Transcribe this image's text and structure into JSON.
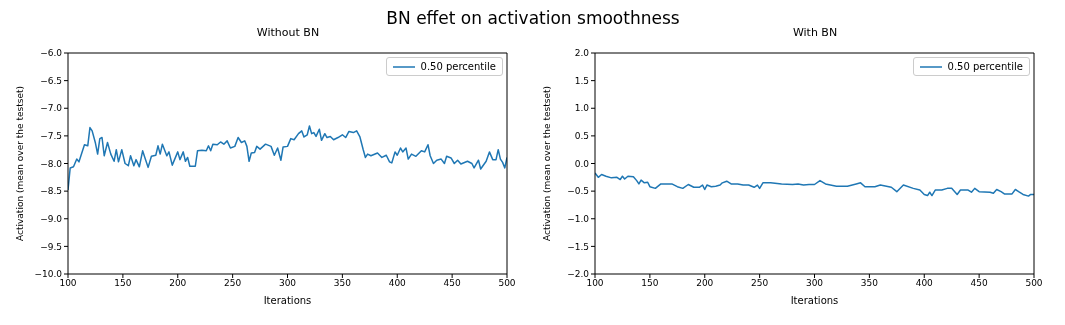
{
  "chart_data": [
    {
      "type": "line",
      "title": "Without BN",
      "annotations": [
        "BN effet on activation smoothness"
      ],
      "xlabel": "Iterations",
      "ylabel": "Activation (mean over the testset)",
      "xlim": [
        100,
        500
      ],
      "xticks": [
        100,
        150,
        200,
        250,
        300,
        350,
        400,
        450,
        500
      ],
      "ylim": [
        -10,
        -6
      ],
      "yticks": [
        {
          "value": -10,
          "label": "−10.0"
        },
        {
          "value": -9.5,
          "label": "−9.5"
        },
        {
          "value": -9,
          "label": "−9.0"
        },
        {
          "value": -8.5,
          "label": "−8.5"
        },
        {
          "value": -8,
          "label": "−8.0"
        },
        {
          "value": -7.5,
          "label": "−7.5"
        },
        {
          "value": -7,
          "label": "−7.0"
        },
        {
          "value": -6.5,
          "label": "−6.5"
        },
        {
          "value": -6,
          "label": "−6.0"
        }
      ],
      "grid": false,
      "legend": "top right",
      "marker": "none",
      "line_style": "solid",
      "series": [
        {
          "name": "0.50 percentile",
          "color": "#1f77b4",
          "x": [
            100,
            102,
            105,
            108,
            110,
            115,
            118,
            120,
            122,
            125,
            127,
            129,
            131,
            133,
            136,
            139,
            142,
            144,
            146,
            149,
            152,
            155,
            157,
            160,
            162,
            165,
            168,
            170,
            173,
            176,
            180,
            182,
            184,
            186,
            190,
            192,
            195,
            200,
            202,
            205,
            207,
            209,
            211,
            216,
            218,
            222,
            226,
            228,
            230,
            232,
            236,
            239,
            242,
            245,
            248,
            252,
            255,
            258,
            261,
            263,
            265,
            267,
            270,
            272,
            275,
            280,
            285,
            288,
            291,
            294,
            296,
            300,
            303,
            306,
            310,
            313,
            315,
            318,
            320,
            322,
            324,
            326,
            329,
            331,
            334,
            336,
            339,
            342,
            346,
            350,
            353,
            356,
            360,
            363,
            366,
            369,
            371,
            373,
            376,
            382,
            386,
            390,
            393,
            395,
            398,
            400,
            403,
            405,
            408,
            410,
            413,
            417,
            422,
            425,
            428,
            430,
            433,
            436,
            440,
            443,
            445,
            449,
            452,
            455,
            458,
            464,
            468,
            470,
            474,
            476,
            481,
            484,
            487,
            490,
            492,
            494,
            496,
            498,
            500
          ],
          "values": [
            -8.48,
            -8.08,
            -8.06,
            -7.92,
            -7.97,
            -7.66,
            -7.68,
            -7.35,
            -7.41,
            -7.63,
            -7.83,
            -7.55,
            -7.53,
            -7.86,
            -7.62,
            -7.83,
            -7.96,
            -7.75,
            -7.97,
            -7.75,
            -8.0,
            -8.04,
            -7.86,
            -8.04,
            -7.93,
            -8.06,
            -7.77,
            -7.89,
            -8.07,
            -7.87,
            -7.85,
            -7.68,
            -7.83,
            -7.65,
            -7.86,
            -7.79,
            -8.03,
            -7.79,
            -7.93,
            -7.79,
            -7.96,
            -7.89,
            -8.05,
            -8.05,
            -7.77,
            -7.76,
            -7.77,
            -7.68,
            -7.77,
            -7.65,
            -7.66,
            -7.61,
            -7.65,
            -7.59,
            -7.72,
            -7.69,
            -7.53,
            -7.62,
            -7.59,
            -7.69,
            -7.96,
            -7.81,
            -7.8,
            -7.69,
            -7.74,
            -7.65,
            -7.69,
            -7.85,
            -7.72,
            -7.94,
            -7.7,
            -7.69,
            -7.55,
            -7.57,
            -7.46,
            -7.41,
            -7.52,
            -7.48,
            -7.32,
            -7.46,
            -7.44,
            -7.51,
            -7.38,
            -7.58,
            -7.46,
            -7.53,
            -7.51,
            -7.57,
            -7.53,
            -7.48,
            -7.53,
            -7.42,
            -7.44,
            -7.41,
            -7.52,
            -7.75,
            -7.89,
            -7.83,
            -7.86,
            -7.81,
            -7.89,
            -7.85,
            -7.97,
            -7.99,
            -7.79,
            -7.85,
            -7.72,
            -7.79,
            -7.72,
            -7.92,
            -7.83,
            -7.87,
            -7.77,
            -7.79,
            -7.66,
            -7.86,
            -8.0,
            -7.94,
            -7.92,
            -8.0,
            -7.87,
            -7.9,
            -8.0,
            -7.94,
            -8.01,
            -7.96,
            -8.0,
            -8.08,
            -7.94,
            -8.1,
            -7.96,
            -7.79,
            -7.93,
            -7.93,
            -7.75,
            -7.92,
            -7.98,
            -8.08,
            -7.89
          ]
        }
      ]
    },
    {
      "type": "line",
      "title": "With BN",
      "xlabel": "Iterations",
      "ylabel": "Activation (mean over the testset)",
      "xlim": [
        100,
        500
      ],
      "xticks": [
        100,
        150,
        200,
        250,
        300,
        350,
        400,
        450,
        500
      ],
      "ylim": [
        -2,
        2
      ],
      "yticks": [
        {
          "value": -2,
          "label": "−2.0"
        },
        {
          "value": -1.5,
          "label": "−1.5"
        },
        {
          "value": -1,
          "label": "−1.0"
        },
        {
          "value": -0.5,
          "label": "−0.5"
        },
        {
          "value": 0,
          "label": "0.0"
        },
        {
          "value": 0.5,
          "label": "0.5"
        },
        {
          "value": 1,
          "label": "1.0"
        },
        {
          "value": 1.5,
          "label": "1.5"
        },
        {
          "value": 2,
          "label": "2.0"
        }
      ],
      "grid": false,
      "legend": "top right",
      "marker": "none",
      "line_style": "solid",
      "series": [
        {
          "name": "0.50 percentile",
          "color": "#1f77b4",
          "x": [
            100,
            103,
            106,
            110,
            115,
            120,
            123,
            125,
            127,
            130,
            135,
            138,
            140,
            142,
            145,
            148,
            150,
            155,
            160,
            165,
            170,
            175,
            180,
            185,
            190,
            195,
            198,
            200,
            202,
            206,
            210,
            214,
            216,
            220,
            224,
            230,
            235,
            240,
            245,
            248,
            250,
            253,
            260,
            270,
            280,
            285,
            290,
            295,
            300,
            305,
            310,
            320,
            330,
            338,
            342,
            346,
            355,
            360,
            370,
            375,
            381,
            390,
            396,
            400,
            403,
            405,
            407,
            410,
            416,
            421,
            425,
            430,
            433,
            440,
            443,
            446,
            450,
            460,
            463,
            466,
            470,
            473,
            480,
            483,
            486,
            490,
            495,
            497,
            500
          ],
          "values": [
            -0.17,
            -0.25,
            -0.2,
            -0.23,
            -0.26,
            -0.25,
            -0.29,
            -0.23,
            -0.28,
            -0.23,
            -0.24,
            -0.31,
            -0.37,
            -0.3,
            -0.35,
            -0.34,
            -0.42,
            -0.45,
            -0.37,
            -0.37,
            -0.37,
            -0.42,
            -0.45,
            -0.38,
            -0.43,
            -0.43,
            -0.39,
            -0.47,
            -0.39,
            -0.42,
            -0.41,
            -0.39,
            -0.35,
            -0.32,
            -0.37,
            -0.37,
            -0.39,
            -0.39,
            -0.43,
            -0.39,
            -0.45,
            -0.35,
            -0.35,
            -0.37,
            -0.38,
            -0.37,
            -0.39,
            -0.38,
            -0.38,
            -0.31,
            -0.37,
            -0.41,
            -0.41,
            -0.37,
            -0.35,
            -0.42,
            -0.42,
            -0.39,
            -0.43,
            -0.51,
            -0.39,
            -0.45,
            -0.48,
            -0.56,
            -0.58,
            -0.52,
            -0.58,
            -0.48,
            -0.48,
            -0.45,
            -0.45,
            -0.56,
            -0.48,
            -0.48,
            -0.52,
            -0.45,
            -0.51,
            -0.52,
            -0.54,
            -0.47,
            -0.51,
            -0.55,
            -0.55,
            -0.47,
            -0.51,
            -0.56,
            -0.59,
            -0.56,
            -0.56
          ]
        }
      ]
    }
  ]
}
